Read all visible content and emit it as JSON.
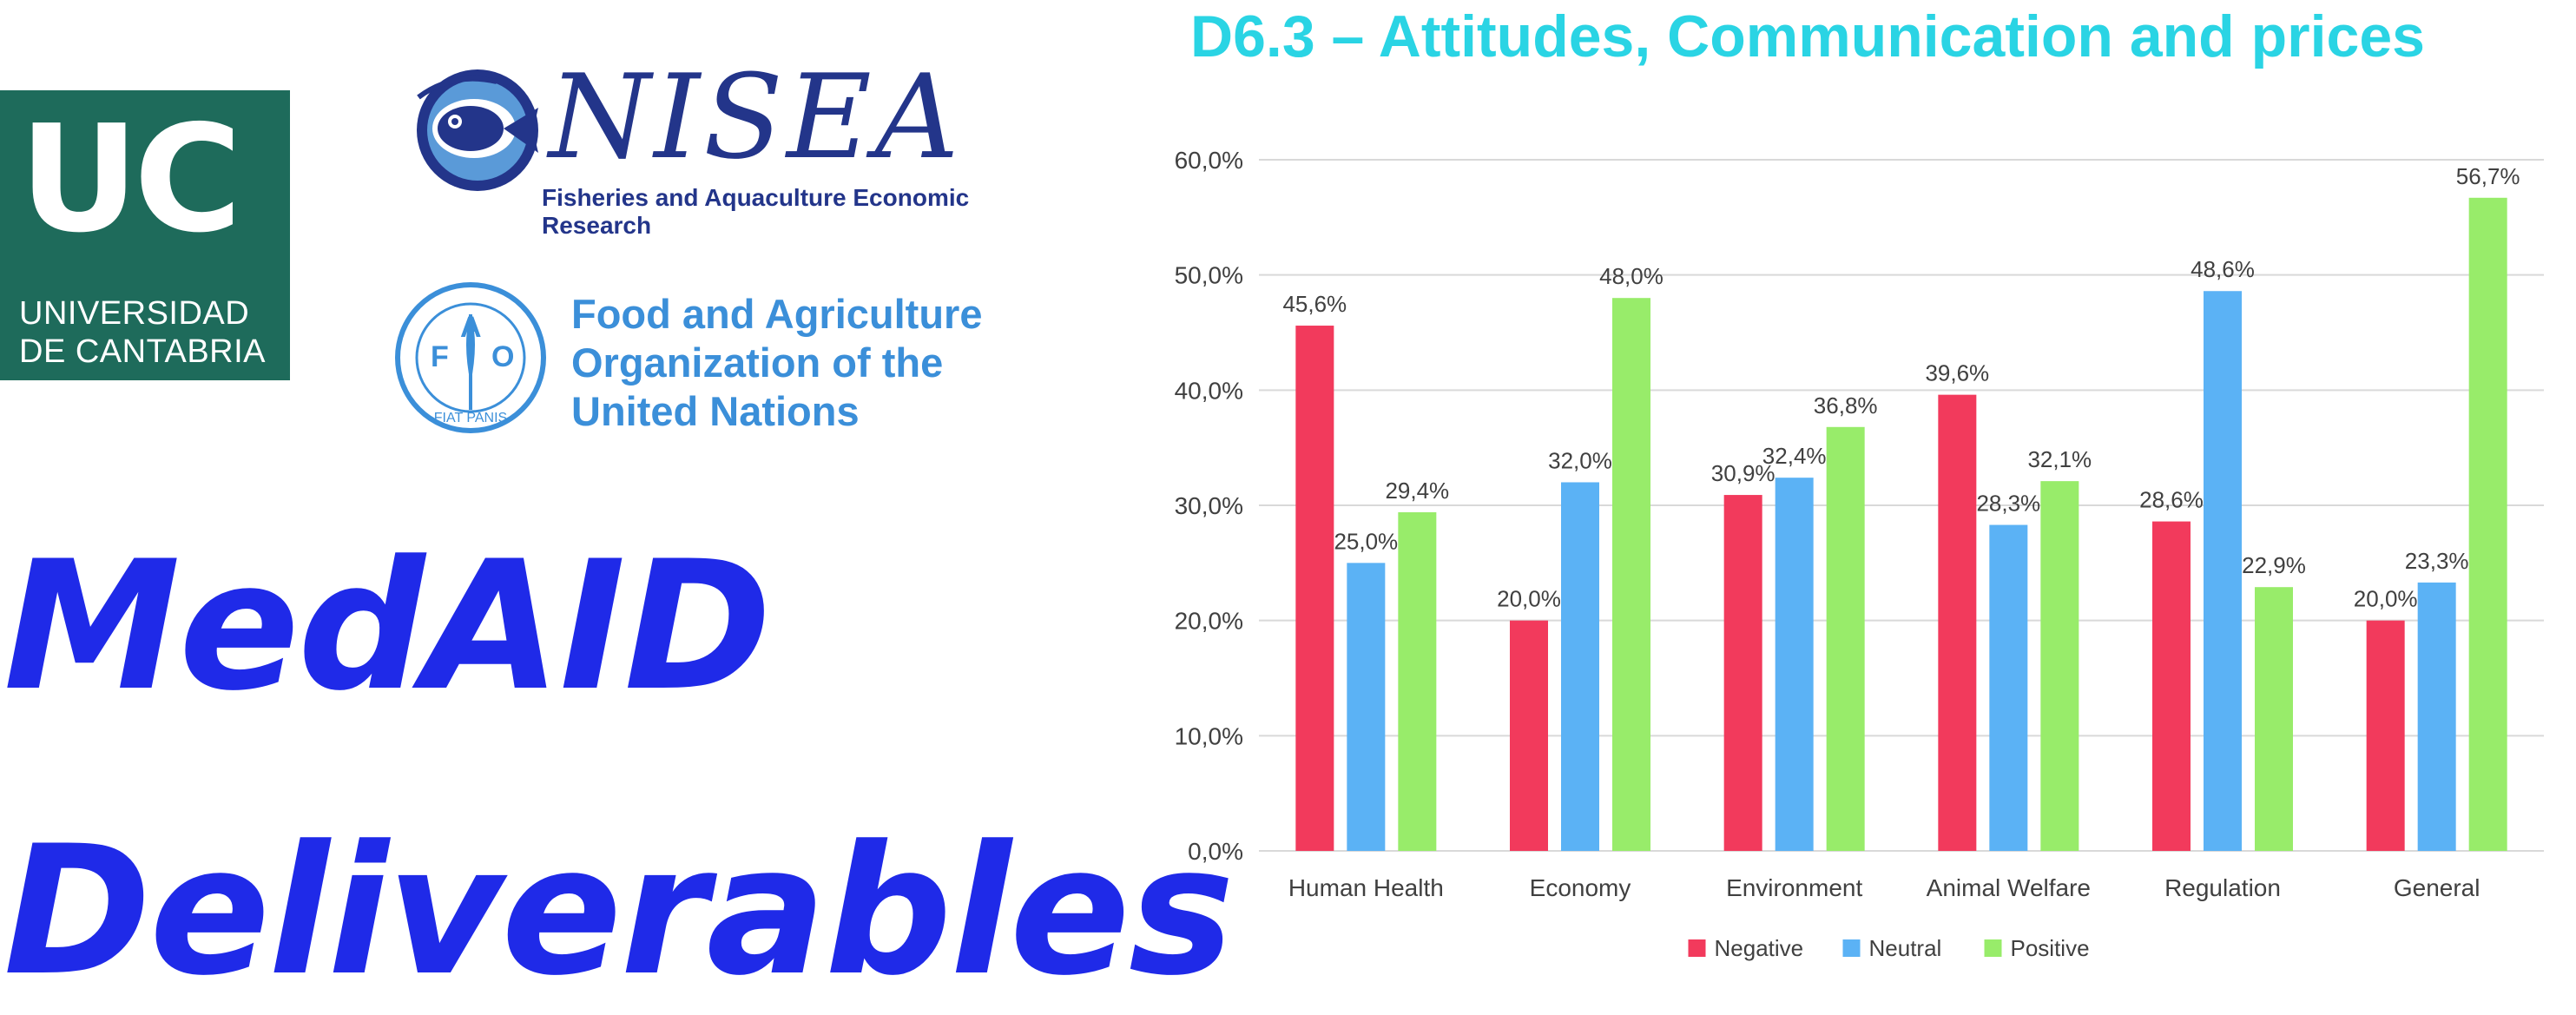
{
  "logos": {
    "uc": {
      "letters": "UC",
      "line1": "UNIVERSIDAD",
      "line2": "DE CANTABRIA",
      "color": "#1e6b5b"
    },
    "nisea": {
      "word": "NISEA",
      "subtitle": "Fisheries and Aquaculture Economic Research",
      "color": "#23358a"
    },
    "fao": {
      "line1": "Food and Agriculture",
      "line2": "Organization of the",
      "line3": "United Nations",
      "emblem_letters": "FAO",
      "emblem_text": "FIAT PANIS",
      "color": "#3b8fd9"
    }
  },
  "headline": {
    "line1": "MedAID",
    "line2": "Deliverables",
    "color": "#1f2ae8"
  },
  "chart_data": {
    "type": "bar",
    "title": "D6.3 – Attitudes, Communication and prices",
    "categories": [
      "Human Health",
      "Economy",
      "Environment",
      "Animal Welfare",
      "Regulation",
      "General"
    ],
    "series": [
      {
        "name": "Negative",
        "color": "#f23a5c",
        "values": [
          45.6,
          20.0,
          30.9,
          39.6,
          28.6,
          20.0
        ],
        "labels": [
          "45,6%",
          "20,0%",
          "30,9%",
          "39,6%",
          "28,6%",
          "20,0%"
        ]
      },
      {
        "name": "Neutral",
        "color": "#5bb2f5",
        "values": [
          25.0,
          32.0,
          32.4,
          28.3,
          48.6,
          23.3
        ],
        "labels": [
          "25,0%",
          "32,0%",
          "32,4%",
          "28,3%",
          "48,6%",
          "23,3%"
        ]
      },
      {
        "name": "Positive",
        "color": "#98ec6a",
        "values": [
          29.4,
          48.0,
          36.8,
          32.1,
          22.9,
          56.7
        ],
        "labels": [
          "29,4%",
          "48,0%",
          "36,8%",
          "32,1%",
          "22,9%",
          "56,7%"
        ]
      }
    ],
    "ylim": [
      0,
      60
    ],
    "yticks": [
      0,
      10,
      20,
      30,
      40,
      50,
      60
    ],
    "ytick_labels": [
      "0,0%",
      "10,0%",
      "20,0%",
      "30,0%",
      "40,0%",
      "50,0%",
      "60,0%"
    ],
    "grid": true,
    "legend_position": "bottom-center",
    "title_color": "#2ad4e4"
  }
}
